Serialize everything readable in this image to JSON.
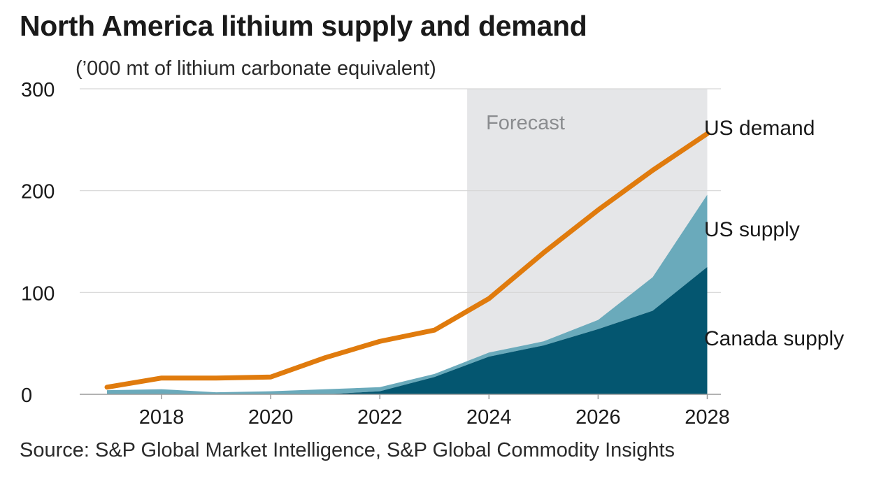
{
  "title": "North America lithium supply and demand",
  "subtitle": "(’000 mt of lithium carbonate equivalent)",
  "source": "Source: S&P Global Market Intelligence, S&P Global Commodity Insights",
  "colors": {
    "us_demand": "#e07b0d",
    "us_supply": "#6aaabb",
    "canada_supply": "#045670",
    "forecast_band": "#e5e6e8",
    "forecast_label": "#8a8c8f",
    "grid": "#d6d6d6"
  },
  "chart_data": {
    "type": "area",
    "title": "North America lithium supply and demand",
    "subtitle": "(’000 mt of lithium carbonate equivalent)",
    "x": [
      2017,
      2018,
      2019,
      2020,
      2021,
      2022,
      2023,
      2024,
      2025,
      2026,
      2027,
      2028
    ],
    "xlim": [
      2016.5,
      2028.25
    ],
    "ylim": [
      0,
      300
    ],
    "yticks": [
      0,
      100,
      200,
      300
    ],
    "xticks": [
      2018,
      2020,
      2022,
      2024,
      2026,
      2028
    ],
    "grid": true,
    "forecast": {
      "label": "Forecast",
      "start": 2023.6,
      "end": 2028
    },
    "series": [
      {
        "name": "Canada supply",
        "kind": "stacked-area",
        "values": [
          0,
          0,
          0,
          0,
          0,
          3,
          17,
          37,
          48,
          64,
          82,
          125
        ]
      },
      {
        "name": "US supply",
        "kind": "stacked-area",
        "values": [
          4,
          5,
          2,
          3,
          5,
          4,
          3,
          4,
          4,
          9,
          33,
          71
        ]
      },
      {
        "name": "US demand",
        "kind": "line",
        "values": [
          7,
          16,
          16,
          17,
          36,
          52,
          63,
          94,
          139,
          181,
          220,
          256
        ]
      }
    ]
  }
}
